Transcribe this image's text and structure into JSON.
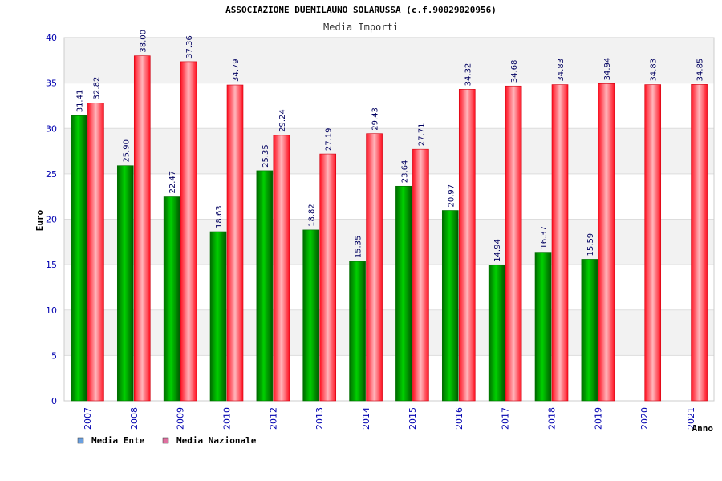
{
  "chart_data": {
    "type": "bar",
    "title": "ASSOCIAZIONE DUEMILAUNO SOLARUSSA (c.f.90029020956)",
    "subtitle": "Media Importi",
    "xlabel": "Anno",
    "ylabel": "Euro",
    "ylim": [
      0,
      40
    ],
    "yticks": [
      "0",
      "5",
      "10",
      "15",
      "20",
      "25",
      "30",
      "35",
      "40"
    ],
    "categories": [
      "2007",
      "2008",
      "2009",
      "2010",
      "2012",
      "2013",
      "2014",
      "2015",
      "2016",
      "2017",
      "2018",
      "2019",
      "2020",
      "2021"
    ],
    "series": [
      {
        "name": "Media Ente",
        "values": [
          31.41,
          25.9,
          22.47,
          18.63,
          25.35,
          18.82,
          15.35,
          23.64,
          20.97,
          14.94,
          16.37,
          15.59,
          null,
          null
        ],
        "labels": [
          "31.41",
          "25.90",
          "22.47",
          "18.63",
          "25.35",
          "18.82",
          "15.35",
          "23.64",
          "20.97",
          "14.94",
          "16.37",
          "15.59",
          null,
          null
        ]
      },
      {
        "name": "Media Nazionale",
        "values": [
          32.82,
          38.0,
          37.36,
          34.79,
          29.24,
          27.19,
          29.43,
          27.71,
          34.32,
          34.68,
          34.83,
          34.94,
          34.83,
          34.85
        ],
        "labels": [
          "32.82",
          "38.00",
          "37.36",
          "34.79",
          "29.24",
          "27.19",
          "29.43",
          "27.71",
          "34.32",
          "34.68",
          "34.83",
          "34.94",
          "34.83",
          "34.85"
        ]
      }
    ],
    "legend": [
      "Media Ente",
      "Media Nazionale"
    ],
    "legend_position": "bottom-left",
    "grid": true,
    "colors": {
      "ente_bar": "#00b000",
      "nazionale_bar": "#ff2030",
      "ente_legend": "#6aa0e0",
      "nazionale_legend": "#e070a0",
      "axis_text": "#0000b0",
      "band": "#f2f2f2"
    }
  }
}
